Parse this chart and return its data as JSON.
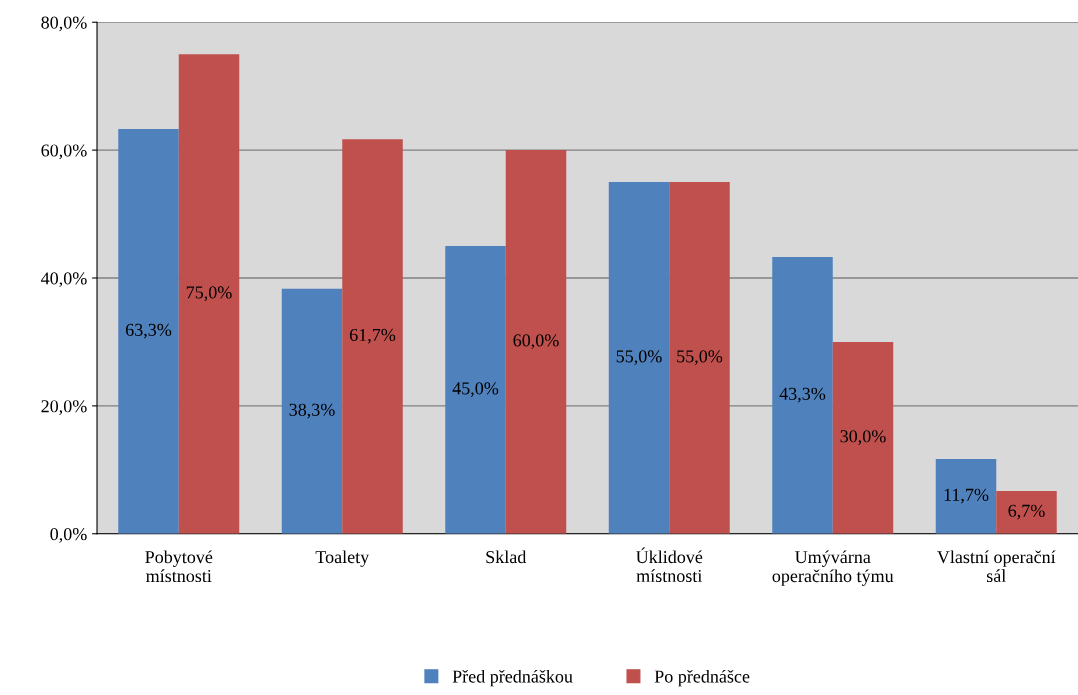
{
  "chart_data": {
    "type": "bar",
    "categories": [
      "Pobytové\nmístnosti",
      "Toalety",
      "Sklad",
      "Úklidové\nmístnosti",
      "Umývárna\noperačního týmu",
      "Vlastní operační\nsál"
    ],
    "series": [
      {
        "name": "Před přednáškou",
        "color": "#4f81bd",
        "values": [
          63.3,
          38.3,
          45.0,
          55.0,
          43.3,
          11.7
        ],
        "value_labels": [
          "63,3%",
          "38,3%",
          "45,0%",
          "55,0%",
          "43,3%",
          "11,7%"
        ]
      },
      {
        "name": "Po přednášce",
        "color": "#c0504d",
        "values": [
          75.0,
          61.7,
          60.0,
          55.0,
          30.0,
          6.7
        ],
        "value_labels": [
          "75,0%",
          "61,7%",
          "60,0%",
          "55,0%",
          "30,0%",
          "6,7%"
        ]
      }
    ],
    "ylim": [
      0,
      80
    ],
    "yticks": [
      {
        "value": 0,
        "label": "0,0%"
      },
      {
        "value": 20,
        "label": "20,0%"
      },
      {
        "value": 40,
        "label": "40,0%"
      },
      {
        "value": 60,
        "label": "60,0%"
      },
      {
        "value": 80,
        "label": "80,0%"
      }
    ],
    "grid": "y",
    "legend": "bottom"
  }
}
